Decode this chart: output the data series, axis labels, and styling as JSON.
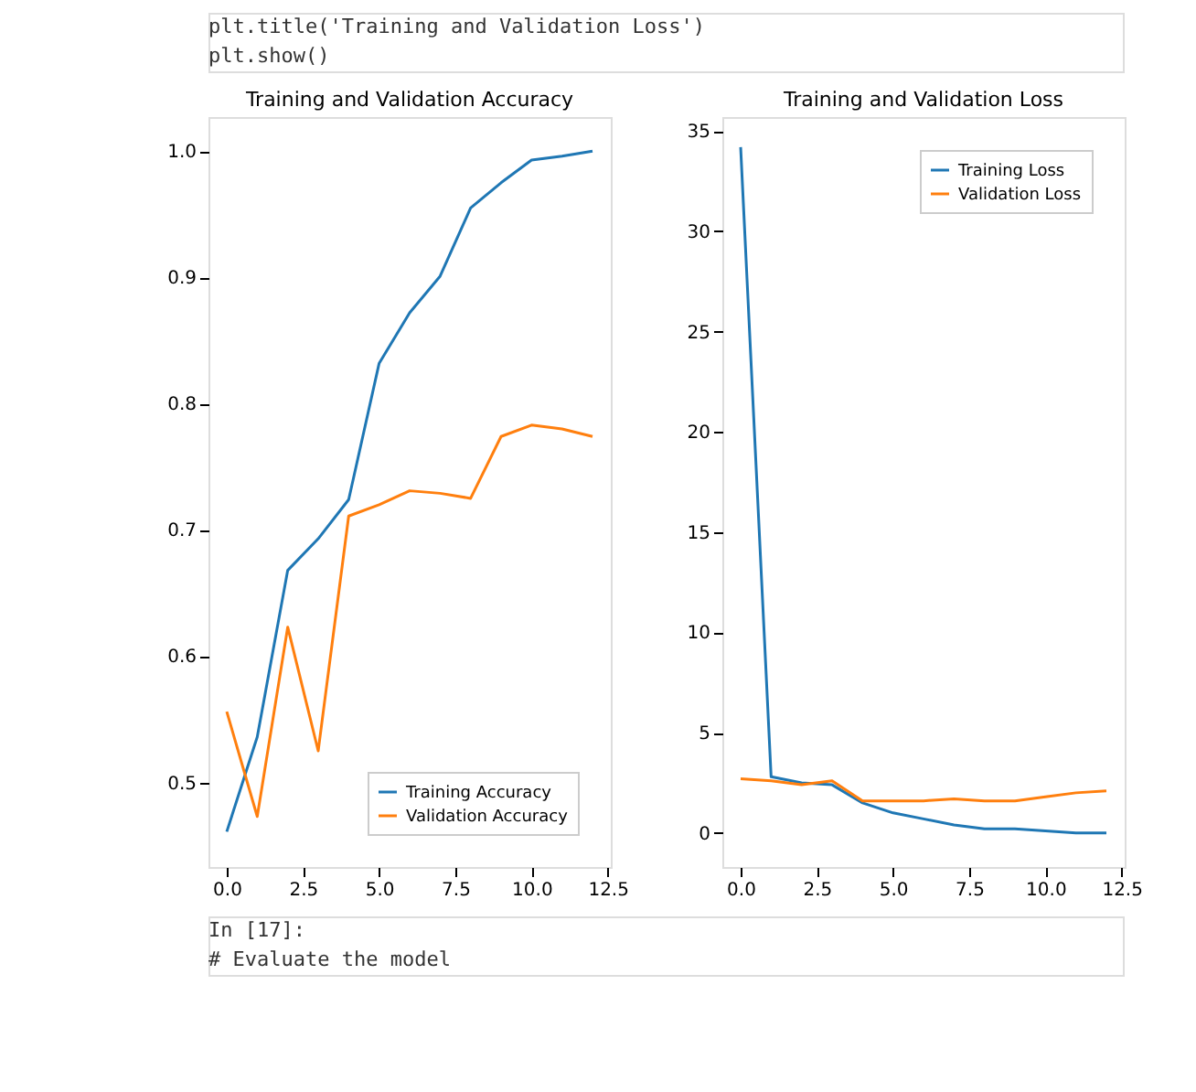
{
  "chart_data": [
    {
      "type": "line",
      "title": "Training and Validation Accuracy",
      "x": [
        0,
        1,
        2,
        3,
        4,
        5,
        6,
        7,
        8,
        9,
        10,
        11,
        12
      ],
      "xlim": [
        -0.6,
        12.6
      ],
      "xticks": [
        {
          "value": 0,
          "label": "0.0"
        },
        2.5,
        {
          "value": 5,
          "label": "5.0"
        },
        7.5,
        {
          "value": 10,
          "label": "10.0"
        },
        12.5
      ],
      "ylim": [
        0.433,
        1.027
      ],
      "yticks": [
        0.5,
        0.6,
        0.7,
        0.8,
        0.9,
        {
          "value": 1,
          "label": "1.0"
        }
      ],
      "grid": false,
      "legend": "bottom right",
      "marker": "none",
      "line_style": "solid",
      "annotations": [
        "plt.title('Training and Validation Loss')",
        "plt.show()"
      ],
      "series": [
        {
          "name": "Training Accuracy",
          "color": "#1f77b4",
          "values": [
            0.461,
            0.536,
            0.668,
            0.693,
            0.724,
            0.832,
            0.872,
            0.901,
            0.955,
            0.975,
            0.993,
            0.996,
            1.0
          ]
        },
        {
          "name": "Validation Accuracy",
          "color": "#ff7f0e",
          "values": [
            0.556,
            0.473,
            0.623,
            0.525,
            0.711,
            0.72,
            0.731,
            0.729,
            0.725,
            0.774,
            0.783,
            0.78,
            0.774
          ]
        }
      ]
    },
    {
      "type": "line",
      "title": "Training and Validation Loss",
      "x": [
        0,
        1,
        2,
        3,
        4,
        5,
        6,
        7,
        8,
        9,
        10,
        11,
        12
      ],
      "xlim": [
        -0.6,
        12.6
      ],
      "xticks": [
        {
          "value": 0,
          "label": "0.0"
        },
        2.5,
        {
          "value": 5,
          "label": "5.0"
        },
        7.5,
        {
          "value": 10,
          "label": "10.0"
        },
        12.5
      ],
      "ylim": [
        -1.7,
        35.7
      ],
      "yticks": [
        0,
        5,
        10,
        15,
        20,
        25,
        30,
        35
      ],
      "grid": false,
      "legend": "top right",
      "marker": "none",
      "line_style": "solid",
      "annotations": [
        "In [17]:",
        "# Evaluate the model"
      ],
      "series": [
        {
          "name": "Training Loss",
          "color": "#1f77b4",
          "values": [
            34.2,
            2.8,
            2.5,
            2.4,
            1.5,
            1.0,
            0.7,
            0.4,
            0.2,
            0.2,
            0.1,
            0.0,
            0.0
          ]
        },
        {
          "name": "Validation Loss",
          "color": "#ff7f0e",
          "values": [
            2.7,
            2.6,
            2.4,
            2.6,
            1.6,
            1.6,
            1.6,
            1.7,
            1.6,
            1.6,
            1.8,
            2.0,
            2.1
          ]
        }
      ]
    }
  ]
}
